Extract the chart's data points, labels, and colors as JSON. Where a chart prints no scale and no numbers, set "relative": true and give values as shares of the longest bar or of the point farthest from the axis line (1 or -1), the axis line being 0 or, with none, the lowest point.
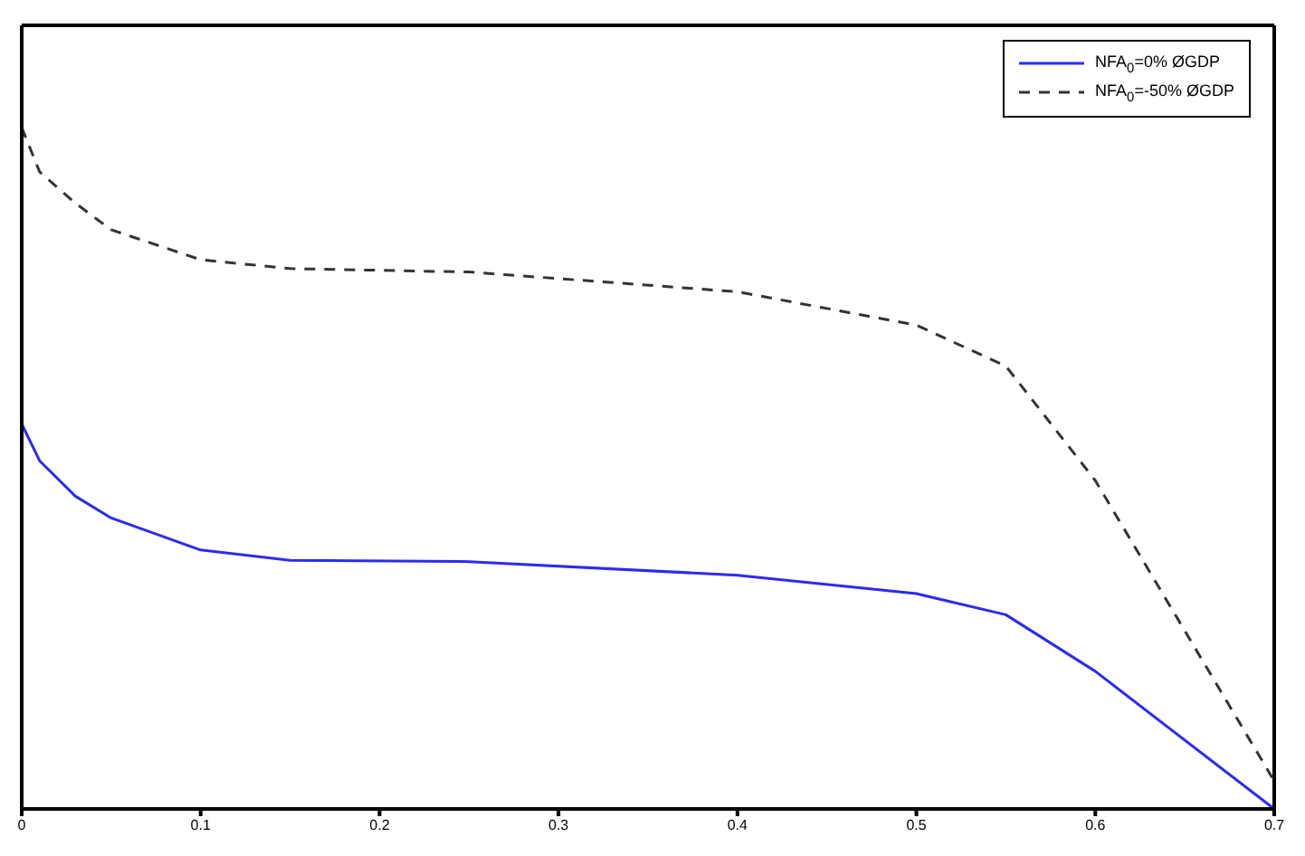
{
  "chart_data": {
    "type": "line",
    "relative": true,
    "xlim": [
      0,
      0.7
    ],
    "xticks": [
      0,
      0.1,
      0.2,
      0.3,
      0.4,
      0.5,
      0.6,
      0.7
    ],
    "legend": "top right",
    "grid": false,
    "marker": "none",
    "series": [
      {
        "name": "NFA$_{0}$=0% ØGDP",
        "color": "#2b2bf0",
        "line_style": "solid",
        "x": [
          0,
          0.01,
          0.03,
          0.05,
          0.1,
          0.15,
          0.25,
          0.4,
          0.5,
          0.55,
          0.6,
          0.7
        ],
        "values": [
          0.565,
          0.511,
          0.459,
          0.427,
          0.38,
          0.365,
          0.363,
          0.343,
          0.316,
          0.285,
          0.202,
          0
        ]
      },
      {
        "name": "NFA$_{0}$=-50% ØGDP",
        "color": "#333333",
        "line_style": "dashed",
        "x": [
          0,
          0.01,
          0.03,
          0.05,
          0.1,
          0.15,
          0.25,
          0.4,
          0.5,
          0.55,
          0.6,
          0.7
        ],
        "values": [
          1,
          0.935,
          0.889,
          0.85,
          0.806,
          0.793,
          0.788,
          0.759,
          0.71,
          0.65,
          0.482,
          0.041
        ]
      }
    ]
  }
}
